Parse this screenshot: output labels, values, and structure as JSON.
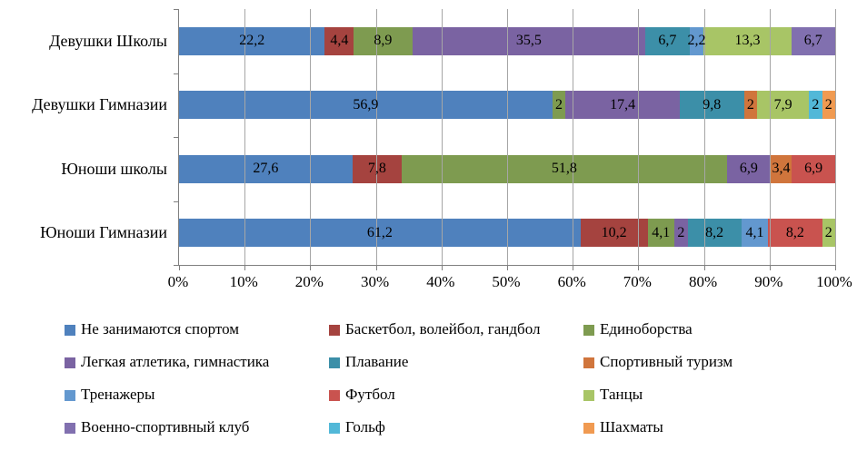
{
  "chart_data": {
    "type": "bar",
    "stacked": true,
    "orientation": "horizontal",
    "unit": "%",
    "decimal_separator": ",",
    "grid": true,
    "legend_position": "bottom",
    "categories": [
      "Девушки Школы",
      "Девушки Гимназии",
      "Юноши школы",
      "Юноши Гимназии"
    ],
    "series": [
      {
        "name": "Не занимаются спортом",
        "color": "#4F81BD",
        "values": [
          22.2,
          56.9,
          27.6,
          61.2
        ]
      },
      {
        "name": "Баскетбол, волейбол, гандбол",
        "color": "#A5433F",
        "values": [
          4.4,
          0,
          7.8,
          10.2
        ]
      },
      {
        "name": "Единоборства",
        "color": "#7E9B50",
        "values": [
          8.9,
          2,
          51.8,
          4.1
        ]
      },
      {
        "name": "Легкая атлетика, гимнастика",
        "color": "#7A63A2",
        "values": [
          35.5,
          17.4,
          6.9,
          2
        ]
      },
      {
        "name": "Плавание",
        "color": "#3C8FA8",
        "values": [
          6.7,
          9.8,
          0,
          8.2
        ]
      },
      {
        "name": "Спортивный туризм",
        "color": "#D0753C",
        "values": [
          0,
          2,
          3.4,
          0
        ]
      },
      {
        "name": "Тренажеры",
        "color": "#6398CF",
        "values": [
          2.2,
          0,
          0,
          4.1
        ]
      },
      {
        "name": "Футбол",
        "color": "#C9534F",
        "values": [
          0,
          0,
          6.9,
          8.2
        ]
      },
      {
        "name": "Танцы",
        "color": "#A8C566",
        "values": [
          13.3,
          7.9,
          0,
          2
        ]
      },
      {
        "name": "Военно-спортивный клуб",
        "color": "#8170AF",
        "values": [
          6.7,
          0,
          0,
          0
        ]
      },
      {
        "name": "Гольф",
        "color": "#52B8D8",
        "values": [
          0,
          2,
          0,
          0
        ]
      },
      {
        "name": "Шахматы",
        "color": "#F09A51",
        "values": [
          0,
          2,
          0,
          0
        ]
      }
    ],
    "x_axis": {
      "min": 0,
      "max": 100,
      "tick_step": 10,
      "ticks": [
        "0%",
        "10%",
        "20%",
        "30%",
        "40%",
        "50%",
        "60%",
        "70%",
        "80%",
        "90%",
        "100%"
      ]
    }
  }
}
